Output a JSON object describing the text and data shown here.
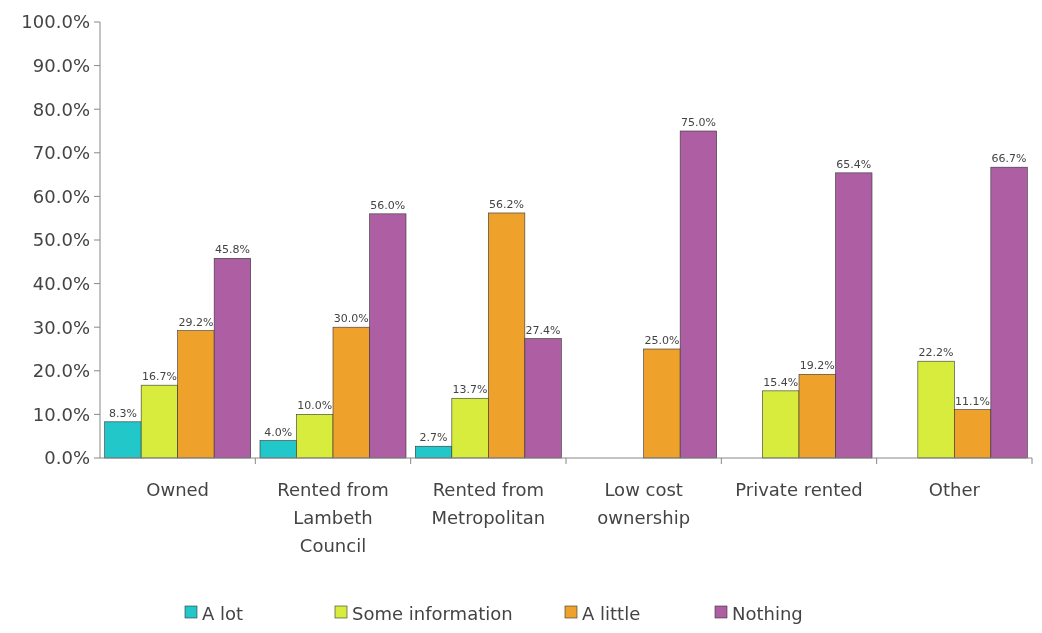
{
  "chart_data": {
    "type": "bar",
    "categories": [
      "Owned",
      "Rented from Lambeth Council",
      "Rented from Metropolitan",
      "Low cost ownership",
      "Private rented",
      "Other"
    ],
    "series": [
      {
        "name": "A lot",
        "color": "#22c7c9",
        "values": [
          8.3,
          4.0,
          2.7,
          null,
          null,
          null
        ],
        "value_labels": [
          "8.3%",
          "4.0%",
          "2.7%",
          null,
          null,
          null
        ]
      },
      {
        "name": "Some information",
        "color": "#d8ec3e",
        "values": [
          16.7,
          10.0,
          13.7,
          null,
          15.4,
          22.2
        ],
        "value_labels": [
          "16.7%",
          "10.0%",
          "13.7%",
          null,
          "15.4%",
          "22.2%"
        ]
      },
      {
        "name": "A little",
        "color": "#eea22b",
        "values": [
          29.2,
          30.0,
          56.2,
          25.0,
          19.2,
          11.1
        ],
        "value_labels": [
          "29.2%",
          "30.0%",
          "56.2%",
          "25.0%",
          "19.2%",
          "11.1%"
        ]
      },
      {
        "name": "Nothing",
        "color": "#ae5fa4",
        "values": [
          45.8,
          56.0,
          27.4,
          75.0,
          65.4,
          66.7
        ],
        "value_labels": [
          "45.8%",
          "56.0%",
          "27.4%",
          "75.0%",
          "65.4%",
          "66.7%"
        ]
      }
    ],
    "ylim": [
      0,
      100
    ],
    "yticks": [
      {
        "value": 0,
        "label": "0.0%"
      },
      {
        "value": 10,
        "label": "10.0%"
      },
      {
        "value": 20,
        "label": "20.0%"
      },
      {
        "value": 30,
        "label": "30.0%"
      },
      {
        "value": 40,
        "label": "40.0%"
      },
      {
        "value": 50,
        "label": "50.0%"
      },
      {
        "value": 60,
        "label": "60.0%"
      },
      {
        "value": 70,
        "label": "70.0%"
      },
      {
        "value": 80,
        "label": "80.0%"
      },
      {
        "value": 90,
        "label": "90.0%"
      },
      {
        "value": 100,
        "label": "100.0%"
      }
    ],
    "legend": "bottom"
  }
}
